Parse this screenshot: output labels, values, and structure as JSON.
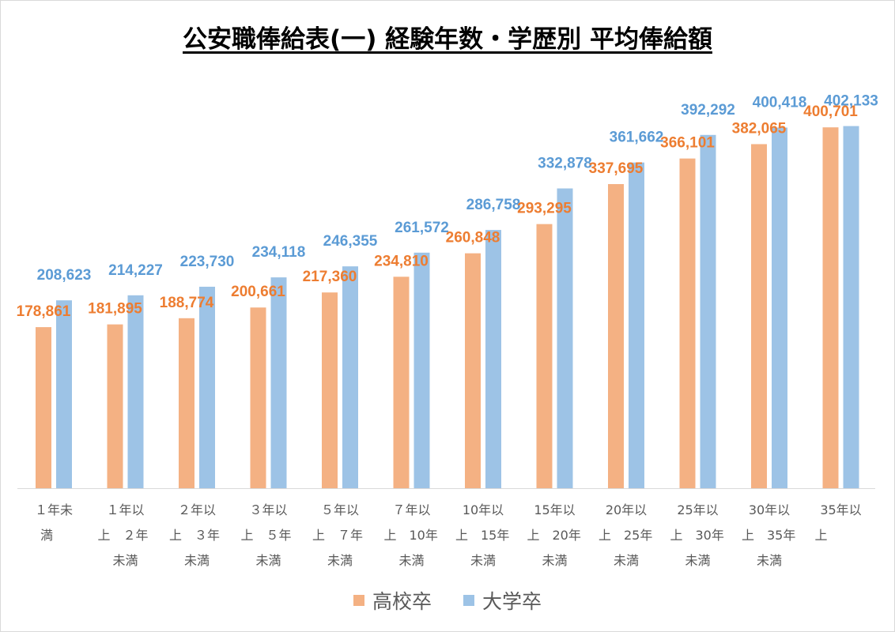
{
  "chart_data": {
    "type": "bar",
    "title": "公安職俸給表(一) 経験年数・学歴別 平均俸給額",
    "categories": [
      [
        "１年未",
        "満"
      ],
      [
        "１年以",
        "上　２年",
        "未満"
      ],
      [
        "２年以",
        "上　３年",
        "未満"
      ],
      [
        "３年以",
        "上　５年",
        "未満"
      ],
      [
        "５年以",
        "上　７年",
        "未満"
      ],
      [
        "７年以",
        "上　10年",
        "未満"
      ],
      [
        "10年以",
        "上　15年",
        "未満"
      ],
      [
        "15年以",
        "上　20年",
        "未満"
      ],
      [
        "20年以",
        "上　25年",
        "未満"
      ],
      [
        "25年以",
        "上　30年",
        "未満"
      ],
      [
        "30年以",
        "上　35年",
        "未満"
      ],
      [
        "35年以",
        "上"
      ]
    ],
    "series": [
      {
        "name": "高校卒",
        "color": "#F4B183",
        "label_color": "#ED7D31",
        "values": [
          178861,
          181895,
          188774,
          200661,
          217360,
          234810,
          260848,
          293295,
          337695,
          366101,
          382065,
          400701
        ],
        "labels": [
          "178,861",
          "181,895",
          "188,774",
          "200,661",
          "217,360",
          "234,810",
          "260,848",
          "293,295",
          "337,695",
          "366,101",
          "382,065",
          "400,701"
        ]
      },
      {
        "name": "大学卒",
        "color": "#9DC3E6",
        "label_color": "#5B9BD5",
        "values": [
          208623,
          214227,
          223730,
          234118,
          246355,
          261572,
          286758,
          332878,
          361662,
          392292,
          400418,
          402133
        ],
        "labels": [
          "208,623",
          "214,227",
          "223,730",
          "234,118",
          "246,355",
          "261,572",
          "286,758",
          "332,878",
          "361,662",
          "392,292",
          "400,418",
          "402,133"
        ]
      }
    ],
    "ylim": [
      0,
      500000
    ],
    "grid": false,
    "legend_position": "bottom"
  }
}
